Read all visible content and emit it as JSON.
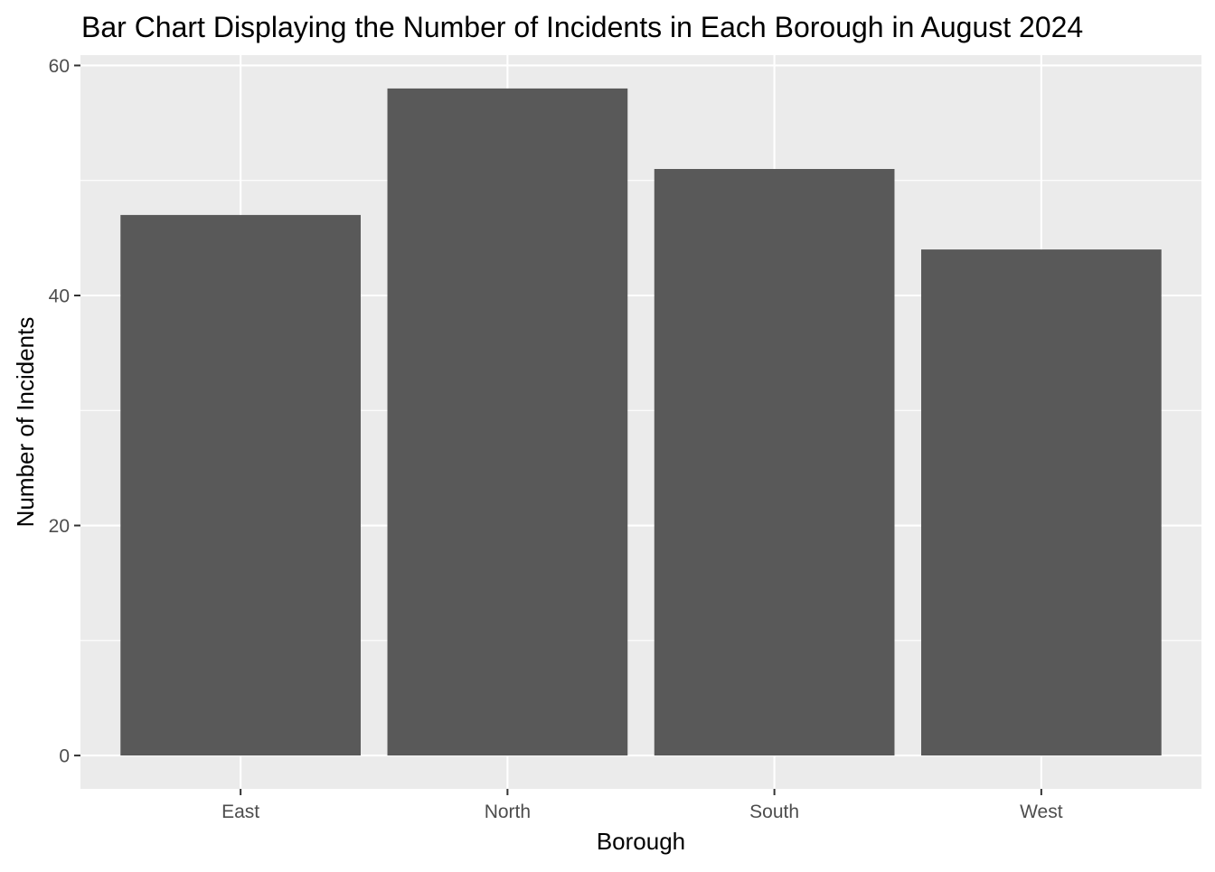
{
  "chart_data": {
    "type": "bar",
    "title": "Bar Chart Displaying the Number of Incidents in Each Borough in August 2024",
    "xlabel": "Borough",
    "ylabel": "Number of Incidents",
    "categories": [
      "East",
      "North",
      "South",
      "West"
    ],
    "values": [
      47,
      58,
      51,
      44
    ],
    "ylim": [
      -2.9,
      60.9
    ],
    "y_ticks": [
      "0",
      "20",
      "40",
      "60"
    ],
    "y_minor_ticks": [
      10,
      30,
      50
    ],
    "grid": true,
    "legend": "none",
    "colors": {
      "bar": "#595959",
      "panel": "#ebebeb",
      "grid": "#ffffff",
      "tick_text": "#4d4d4d",
      "tick_mark": "#333333",
      "text": "#000000"
    }
  }
}
